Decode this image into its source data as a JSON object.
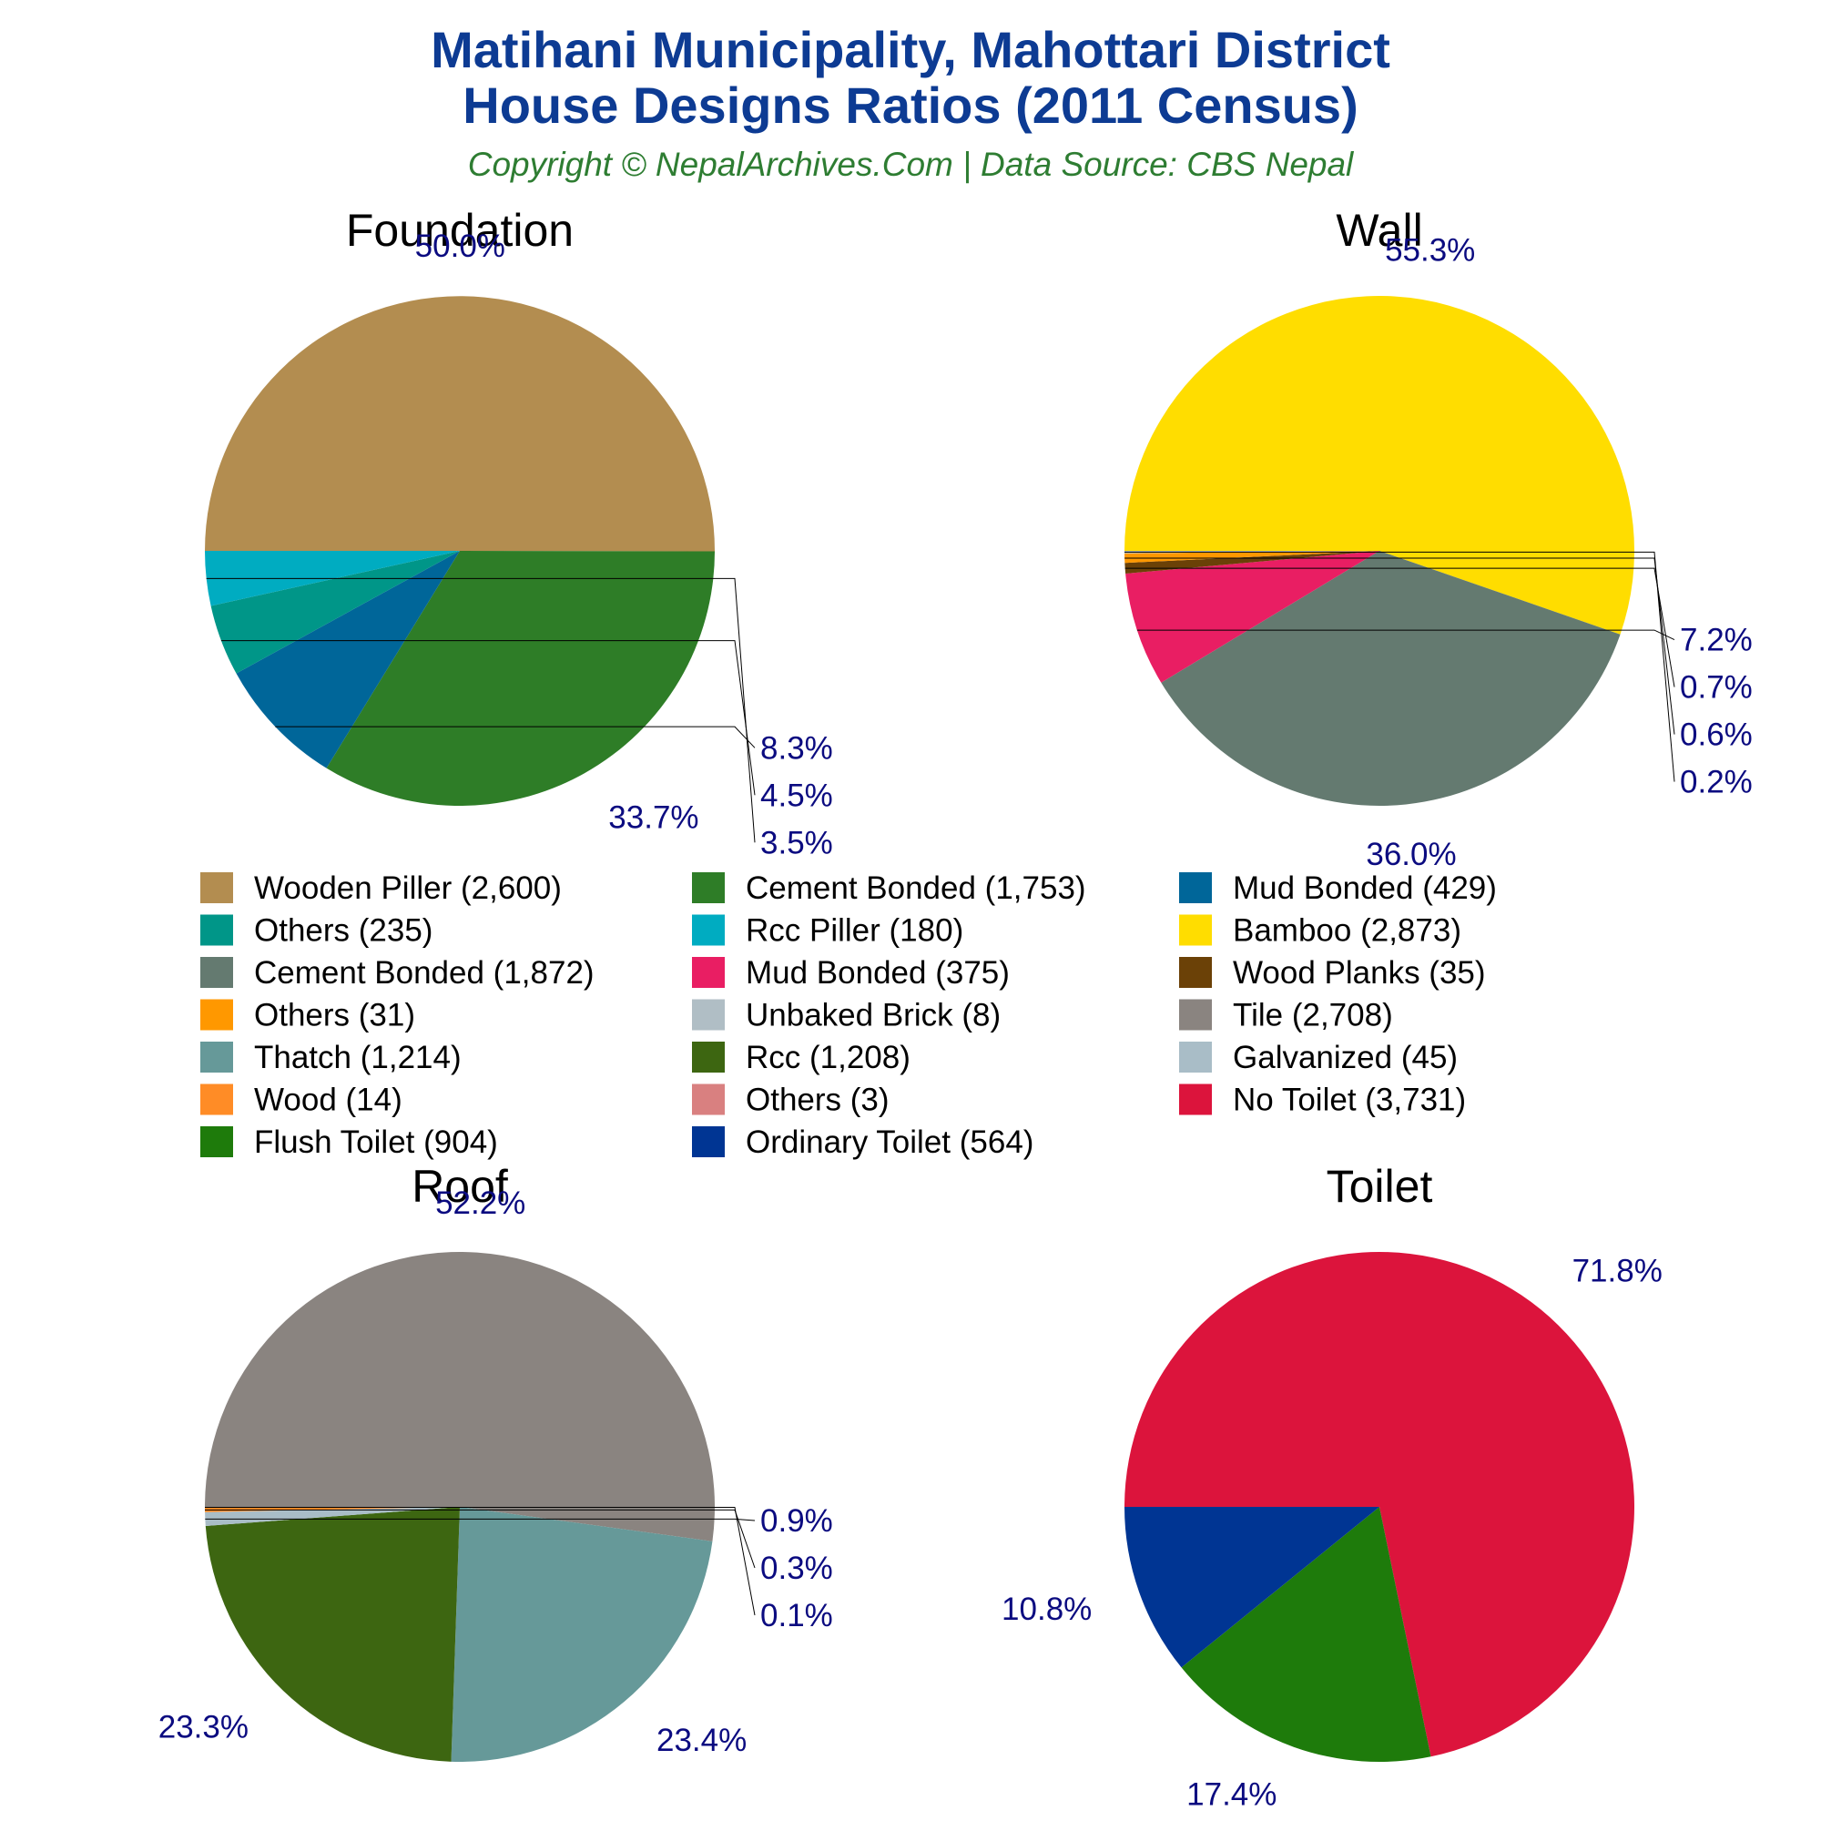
{
  "header": {
    "title_line1": "Matihani Municipality, Mahottari District",
    "title_line2": "House Designs Ratios (2011 Census)",
    "subtitle": "Copyright © NepalArchives.Com | Data Source: CBS Nepal"
  },
  "colors": {
    "title": "#0d3b93",
    "subtitle": "#2e7d32",
    "percent_label": "#0b0b80",
    "leader_line": "#000000"
  },
  "chart_data": [
    {
      "type": "pie",
      "title": "Foundation",
      "slices": [
        {
          "label": "Wooden Piller",
          "count": "2,600",
          "value": 2600,
          "percent": "50.0%",
          "color": "#b38d50"
        },
        {
          "label": "Cement Bonded",
          "count": "1,753",
          "value": 1753,
          "percent": "33.7%",
          "color": "#2e7d27"
        },
        {
          "label": "Mud Bonded",
          "count": "429",
          "value": 429,
          "percent": "8.3%",
          "color": "#006699"
        },
        {
          "label": "Others",
          "count": "235",
          "value": 235,
          "percent": "4.5%",
          "color": "#009688"
        },
        {
          "label": "Rcc Piller",
          "count": "180",
          "value": 180,
          "percent": "3.5%",
          "color": "#00acc1"
        }
      ]
    },
    {
      "type": "pie",
      "title": "Wall",
      "slices": [
        {
          "label": "Bamboo",
          "count": "2,873",
          "value": 2873,
          "percent": "55.3%",
          "color": "#ffdd00"
        },
        {
          "label": "Cement Bonded",
          "count": "1,872",
          "value": 1872,
          "percent": "36.0%",
          "color": "#647a70"
        },
        {
          "label": "Mud Bonded",
          "count": "375",
          "value": 375,
          "percent": "7.2%",
          "color": "#e91e63"
        },
        {
          "label": "Wood Planks",
          "count": "35",
          "value": 35,
          "percent": "0.7%",
          "color": "#6b4107"
        },
        {
          "label": "Others",
          "count": "31",
          "value": 31,
          "percent": "0.6%",
          "color": "#ff9800"
        },
        {
          "label": "Unbaked Brick",
          "count": "8",
          "value": 8,
          "percent": "0.2%",
          "color": "#b0bec5"
        }
      ]
    },
    {
      "type": "pie",
      "title": "Roof",
      "slices": [
        {
          "label": "Tile",
          "count": "2,708",
          "value": 2708,
          "percent": "52.2%",
          "color": "#8a8480"
        },
        {
          "label": "Thatch",
          "count": "1,214",
          "value": 1214,
          "percent": "23.4%",
          "color": "#669999"
        },
        {
          "label": "Rcc",
          "count": "1,208",
          "value": 1208,
          "percent": "23.3%",
          "color": "#3d6611"
        },
        {
          "label": "Galvanized",
          "count": "45",
          "value": 45,
          "percent": "0.9%",
          "color": "#a9bdc7"
        },
        {
          "label": "Wood",
          "count": "14",
          "value": 14,
          "percent": "0.3%",
          "color": "#ff8c26"
        },
        {
          "label": "Others",
          "count": "3",
          "value": 3,
          "percent": "0.1%",
          "color": "#d98080"
        }
      ]
    },
    {
      "type": "pie",
      "title": "Toilet",
      "slices": [
        {
          "label": "No Toilet",
          "count": "3,731",
          "value": 3731,
          "percent": "71.8%",
          "color": "#dc143c"
        },
        {
          "label": "Flush Toilet",
          "count": "904",
          "value": 904,
          "percent": "17.4%",
          "color": "#1e7b0b"
        },
        {
          "label": "Ordinary Toilet",
          "count": "564",
          "value": 564,
          "percent": "10.8%",
          "color": "#003593"
        }
      ]
    }
  ],
  "legend": [
    {
      "text": "Wooden Piller (2,600)",
      "color": "#b38d50"
    },
    {
      "text": "Cement Bonded (1,753)",
      "color": "#2e7d27"
    },
    {
      "text": "Mud Bonded (429)",
      "color": "#006699"
    },
    {
      "text": "Others (235)",
      "color": "#009688"
    },
    {
      "text": "Rcc Piller (180)",
      "color": "#00acc1"
    },
    {
      "text": "Bamboo (2,873)",
      "color": "#ffdd00"
    },
    {
      "text": "Cement Bonded (1,872)",
      "color": "#647a70"
    },
    {
      "text": "Mud Bonded (375)",
      "color": "#e91e63"
    },
    {
      "text": "Wood Planks (35)",
      "color": "#6b4107"
    },
    {
      "text": "Others (31)",
      "color": "#ff9800"
    },
    {
      "text": "Unbaked Brick (8)",
      "color": "#b0bec5"
    },
    {
      "text": "Tile (2,708)",
      "color": "#8a8480"
    },
    {
      "text": "Thatch (1,214)",
      "color": "#669999"
    },
    {
      "text": "Rcc (1,208)",
      "color": "#3d6611"
    },
    {
      "text": "Galvanized (45)",
      "color": "#a9bdc7"
    },
    {
      "text": "Wood (14)",
      "color": "#ff8c26"
    },
    {
      "text": "Others (3)",
      "color": "#d98080"
    },
    {
      "text": "No Toilet (3,731)",
      "color": "#dc143c"
    },
    {
      "text": "Flush Toilet (904)",
      "color": "#1e7b0b"
    },
    {
      "text": "Ordinary Toilet (564)",
      "color": "#003593"
    }
  ]
}
